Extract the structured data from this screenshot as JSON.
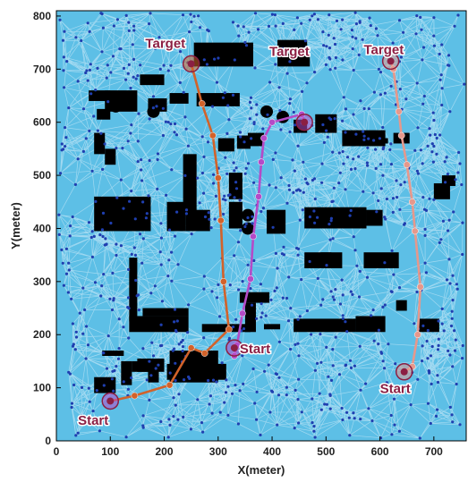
{
  "chart_data": {
    "type": "scatter",
    "xlabel": "X(meter)",
    "ylabel": "Y(meter)",
    "xlim": [
      0,
      760
    ],
    "ylim": [
      0,
      810
    ],
    "xticks": [
      "0",
      "100",
      "200",
      "300",
      "400",
      "500",
      "600",
      "700"
    ],
    "yticks": [
      "0",
      "100",
      "200",
      "300",
      "400",
      "500",
      "600",
      "700",
      "800"
    ],
    "grid": false,
    "colors": {
      "background": "#5dbfe6",
      "edges": "#a8dcf2",
      "nodes": "#1f3fb0",
      "obstacles": "#000000",
      "path_orange": "#d2622a",
      "path_magenta": "#b44bc7",
      "path_salmon": "#e6988c",
      "annotation": "#8b1f43"
    },
    "series": [
      {
        "color": "#d2622a",
        "x": [
          100,
          145,
          210,
          250,
          275,
          320,
          310,
          305,
          300,
          290,
          270,
          250
        ],
        "y": [
          75,
          85,
          105,
          175,
          165,
          210,
          300,
          415,
          495,
          575,
          635,
          710
        ]
      },
      {
        "color": "#b44bc7",
        "x": [
          330,
          335,
          345,
          360,
          365,
          375,
          380,
          385,
          400,
          455,
          460
        ],
        "y": [
          160,
          180,
          240,
          305,
          385,
          460,
          525,
          570,
          600,
          615,
          600
        ]
      },
      {
        "color": "#e6988c",
        "x": [
          645,
          660,
          670,
          675,
          665,
          660,
          650,
          640,
          635,
          625,
          620
        ],
        "y": [
          130,
          140,
          200,
          290,
          395,
          450,
          520,
          575,
          620,
          700,
          715
        ]
      }
    ],
    "annotations": [
      {
        "text": "Target",
        "x": 165,
        "y": 740
      },
      {
        "text": "Target",
        "x": 395,
        "y": 725
      },
      {
        "text": "Target",
        "x": 570,
        "y": 728
      },
      {
        "text": "Start",
        "x": 340,
        "y": 165
      },
      {
        "text": "Start",
        "x": 40,
        "y": 30
      },
      {
        "text": "Start",
        "x": 600,
        "y": 90
      }
    ],
    "markers": [
      {
        "x": 250,
        "y": 710,
        "color": "#d2622a"
      },
      {
        "x": 460,
        "y": 600,
        "color": "#b44bc7"
      },
      {
        "x": 620,
        "y": 715,
        "color": "#e6988c"
      },
      {
        "x": 100,
        "y": 75,
        "color": "#b44bc7"
      },
      {
        "x": 330,
        "y": 175,
        "color": "#b44bc7"
      },
      {
        "x": 645,
        "y": 130,
        "color": "#e6988c"
      }
    ],
    "obstacles": [
      [
        70,
        90,
        40,
        30
      ],
      [
        85,
        160,
        40,
        10
      ],
      [
        120,
        105,
        20,
        45
      ],
      [
        140,
        130,
        50,
        20
      ],
      [
        170,
        110,
        20,
        25
      ],
      [
        150,
        130,
        50,
        25
      ],
      [
        205,
        115,
        110,
        30
      ],
      [
        210,
        110,
        90,
        60
      ],
      [
        245,
        150,
        25,
        15
      ],
      [
        135,
        205,
        110,
        30
      ],
      [
        135,
        225,
        15,
        120
      ],
      [
        160,
        235,
        85,
        15
      ],
      [
        270,
        205,
        90,
        15
      ],
      [
        350,
        205,
        20,
        55
      ],
      [
        340,
        260,
        55,
        20
      ],
      [
        385,
        210,
        30,
        10
      ],
      [
        440,
        205,
        115,
        25
      ],
      [
        555,
        205,
        55,
        30
      ],
      [
        670,
        205,
        40,
        25
      ],
      [
        630,
        245,
        20,
        20
      ],
      [
        70,
        395,
        65,
        65
      ],
      [
        130,
        395,
        45,
        65
      ],
      [
        205,
        395,
        35,
        55
      ],
      [
        240,
        395,
        45,
        40
      ],
      [
        235,
        430,
        25,
        110
      ],
      [
        320,
        400,
        25,
        50
      ],
      [
        320,
        455,
        25,
        50
      ],
      [
        390,
        390,
        35,
        45
      ],
      [
        460,
        400,
        115,
        40
      ],
      [
        575,
        405,
        30,
        30
      ],
      [
        460,
        325,
        70,
        30
      ],
      [
        570,
        325,
        65,
        30
      ],
      [
        490,
        345,
        20,
        10
      ],
      [
        70,
        540,
        20,
        40
      ],
      [
        90,
        520,
        20,
        30
      ],
      [
        300,
        545,
        30,
        25
      ],
      [
        355,
        555,
        30,
        25
      ],
      [
        530,
        555,
        80,
        30
      ],
      [
        600,
        560,
        15,
        10
      ],
      [
        60,
        640,
        40,
        20
      ],
      [
        90,
        620,
        60,
        40
      ],
      [
        75,
        605,
        25,
        20
      ],
      [
        170,
        620,
        35,
        25
      ],
      [
        210,
        635,
        35,
        20
      ],
      [
        260,
        630,
        80,
        25
      ],
      [
        255,
        705,
        110,
        45
      ],
      [
        155,
        670,
        45,
        20
      ],
      [
        410,
        705,
        60,
        25
      ],
      [
        410,
        735,
        55,
        20
      ],
      [
        440,
        580,
        25,
        25
      ],
      [
        335,
        550,
        25,
        25
      ],
      [
        480,
        580,
        40,
        35
      ],
      [
        625,
        560,
        30,
        20
      ],
      [
        700,
        455,
        30,
        30
      ],
      [
        715,
        480,
        25,
        20
      ]
    ]
  }
}
